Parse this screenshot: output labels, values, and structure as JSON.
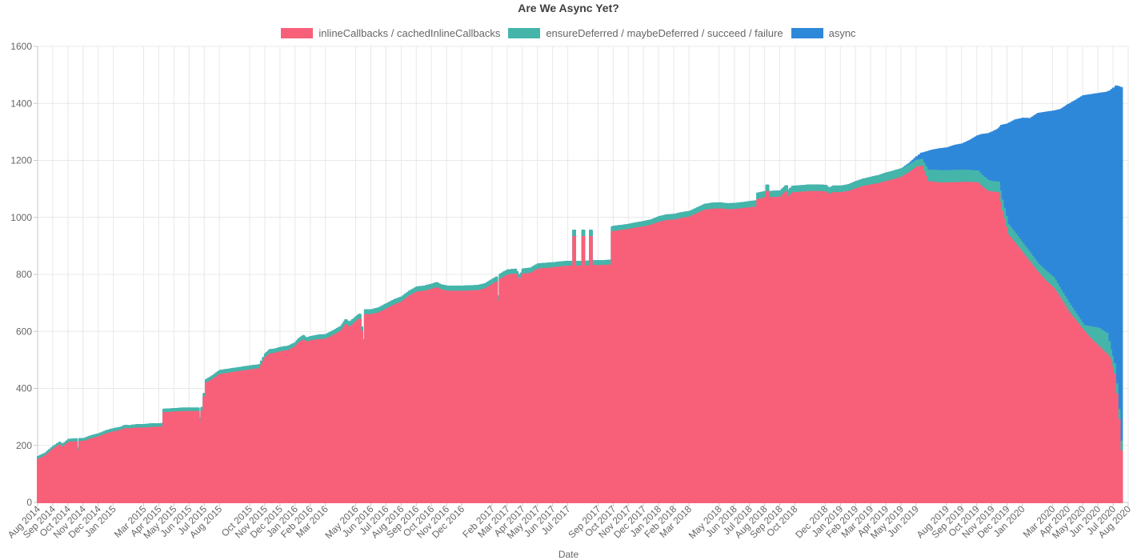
{
  "title": "Are We Async Yet?",
  "x_axis_title": "Date",
  "colors": {
    "inlineCallbacks": "#f8607a",
    "deferred": "#45b5aa",
    "async": "#2e88da",
    "grid": "#e8e8e8",
    "axis_line": "#c9c9c9",
    "tick_text": "#666666"
  },
  "legend": [
    {
      "label": "inlineCallbacks / cachedInlineCallbacks",
      "color": "#f8607a"
    },
    {
      "label": "ensureDeferred / maybeDeferred / succeed / failure",
      "color": "#45b5aa"
    },
    {
      "label": "async",
      "color": "#2e88da"
    }
  ],
  "chart_data": {
    "type": "area",
    "stacked": true,
    "title": "Are We Async Yet?",
    "xlabel": "Date",
    "ylabel": "",
    "ylim": [
      0,
      1600
    ],
    "grid": true,
    "legend_position": "top",
    "x_unit": "fractional months since Aug 2014",
    "y_ticks": [
      0,
      200,
      400,
      600,
      800,
      1000,
      1200,
      1400,
      1600
    ],
    "x_tick_labels": [
      [
        0,
        "Aug 2014"
      ],
      [
        1,
        "Sep 2014"
      ],
      [
        2,
        "Oct 2014"
      ],
      [
        3,
        "Nov 2014"
      ],
      [
        4,
        "Dec 2014"
      ],
      [
        5,
        "Jan 2015"
      ],
      [
        7,
        "Mar 2015"
      ],
      [
        8,
        "Apr 2015"
      ],
      [
        9,
        "May 2015"
      ],
      [
        10,
        "Jun 2015"
      ],
      [
        11,
        "Jul 2015"
      ],
      [
        12,
        "Aug 2015"
      ],
      [
        14,
        "Oct 2015"
      ],
      [
        15,
        "Nov 2015"
      ],
      [
        16,
        "Dec 2015"
      ],
      [
        17,
        "Jan 2016"
      ],
      [
        18,
        "Feb 2016"
      ],
      [
        19,
        "Mar 2016"
      ],
      [
        21,
        "May 2016"
      ],
      [
        22,
        "Jun 2016"
      ],
      [
        23,
        "Jul 2016"
      ],
      [
        24,
        "Aug 2016"
      ],
      [
        25,
        "Sep 2016"
      ],
      [
        26,
        "Oct 2016"
      ],
      [
        27,
        "Nov 2016"
      ],
      [
        28,
        "Dec 2016"
      ],
      [
        30,
        "Feb 2017"
      ],
      [
        31,
        "Mar 2017"
      ],
      [
        32,
        "Apr 2017"
      ],
      [
        33,
        "May 2017"
      ],
      [
        34,
        "Jun 2017"
      ],
      [
        35,
        "Jul 2017"
      ],
      [
        37,
        "Sep 2017"
      ],
      [
        38,
        "Oct 2017"
      ],
      [
        39,
        "Nov 2017"
      ],
      [
        40,
        "Dec 2017"
      ],
      [
        41,
        "Jan 2018"
      ],
      [
        42,
        "Feb 2018"
      ],
      [
        43,
        "Mar 2018"
      ],
      [
        45,
        "May 2018"
      ],
      [
        46,
        "Jun 2018"
      ],
      [
        47,
        "Jul 2018"
      ],
      [
        48,
        "Aug 2018"
      ],
      [
        49,
        "Sep 2018"
      ],
      [
        50,
        "Oct 2018"
      ],
      [
        52,
        "Dec 2018"
      ],
      [
        53,
        "Jan 2019"
      ],
      [
        54,
        "Feb 2019"
      ],
      [
        55,
        "Mar 2019"
      ],
      [
        56,
        "Apr 2019"
      ],
      [
        57,
        "May 2019"
      ],
      [
        58,
        "Jun 2019"
      ],
      [
        60,
        "Aug 2019"
      ],
      [
        61,
        "Sep 2019"
      ],
      [
        62,
        "Oct 2019"
      ],
      [
        63,
        "Nov 2019"
      ],
      [
        64,
        "Dec 2019"
      ],
      [
        65,
        "Jan 2020"
      ],
      [
        67,
        "Mar 2020"
      ],
      [
        68,
        "Apr 2020"
      ],
      [
        69,
        "May 2020"
      ],
      [
        70,
        "Jun 2020"
      ],
      [
        71,
        "Jul 2020"
      ],
      [
        72,
        "Aug 2020"
      ]
    ],
    "series": [
      {
        "name": "inlineCallbacks / cachedInlineCallbacks",
        "color": "#f8607a"
      },
      {
        "name": "ensureDeferred / maybeDeferred / succeed / failure",
        "color": "#45b5aa"
      },
      {
        "name": "async",
        "color": "#2e88da"
      }
    ],
    "points_format": "[x_month, inlineCallbacks, deferred, async]",
    "points": [
      [
        0,
        150,
        10,
        0
      ],
      [
        0.5,
        163,
        10,
        0
      ],
      [
        1,
        186,
        10,
        0
      ],
      [
        1.4,
        200,
        10,
        0
      ],
      [
        1.6,
        192,
        10,
        0
      ],
      [
        2,
        210,
        10,
        0
      ],
      [
        2.5,
        212,
        10,
        0
      ],
      [
        2.6,
        180,
        10,
        0
      ],
      [
        2.75,
        213,
        10,
        0
      ],
      [
        3,
        213,
        10,
        0
      ],
      [
        3.5,
        222,
        11,
        0
      ],
      [
        4,
        229,
        11,
        0
      ],
      [
        4.5,
        240,
        11,
        0
      ],
      [
        5,
        247,
        11,
        0
      ],
      [
        5.5,
        252,
        11,
        0
      ],
      [
        5.7,
        258,
        11,
        0
      ],
      [
        6,
        257,
        11,
        0
      ],
      [
        6.5,
        260,
        12,
        0
      ],
      [
        7,
        260,
        12,
        0
      ],
      [
        7.5,
        262,
        13,
        0
      ],
      [
        8,
        263,
        12,
        0
      ],
      [
        8.2,
        264,
        12,
        0
      ],
      [
        8.3,
        314,
        12,
        0
      ],
      [
        9,
        316,
        12,
        0
      ],
      [
        9.5,
        318,
        12,
        0
      ],
      [
        10,
        318,
        12,
        0
      ],
      [
        10.55,
        318,
        12,
        0
      ],
      [
        10.65,
        283,
        12,
        0
      ],
      [
        10.8,
        320,
        12,
        0
      ],
      [
        11.1,
        418,
        12,
        0
      ],
      [
        11.5,
        430,
        13,
        0
      ],
      [
        12,
        448,
        14,
        0
      ],
      [
        12.5,
        452,
        14,
        0
      ],
      [
        13,
        456,
        14,
        0
      ],
      [
        13.5,
        460,
        14,
        0
      ],
      [
        14,
        464,
        14,
        0
      ],
      [
        14.6,
        468,
        14,
        0
      ],
      [
        15,
        505,
        15,
        0
      ],
      [
        15.3,
        520,
        15,
        0
      ],
      [
        15.6,
        522,
        15,
        0
      ],
      [
        16,
        528,
        15,
        0
      ],
      [
        16.5,
        532,
        15,
        0
      ],
      [
        17,
        545,
        15,
        0
      ],
      [
        17.2,
        558,
        15,
        0
      ],
      [
        17.5,
        568,
        16,
        0
      ],
      [
        17.7,
        560,
        15,
        0
      ],
      [
        18,
        566,
        15,
        0
      ],
      [
        18.5,
        570,
        16,
        0
      ],
      [
        19,
        572,
        16,
        0
      ],
      [
        19.5,
        585,
        17,
        0
      ],
      [
        20,
        600,
        17,
        0
      ],
      [
        20.3,
        622,
        18,
        0
      ],
      [
        20.5,
        612,
        18,
        0
      ],
      [
        20.9,
        628,
        18,
        0
      ],
      [
        21.2,
        642,
        17,
        0
      ],
      [
        21.45,
        555,
        15,
        0
      ],
      [
        21.6,
        658,
        17,
        0
      ],
      [
        22,
        658,
        17,
        0
      ],
      [
        22.5,
        664,
        18,
        0
      ],
      [
        23,
        678,
        18,
        0
      ],
      [
        23.5,
        692,
        18,
        0
      ],
      [
        24,
        702,
        18,
        0
      ],
      [
        24.5,
        722,
        18,
        0
      ],
      [
        25,
        737,
        18,
        0
      ],
      [
        25.5,
        740,
        18,
        0
      ],
      [
        26,
        747,
        18,
        0
      ],
      [
        26.3,
        752,
        18,
        0
      ],
      [
        26.6,
        744,
        18,
        0
      ],
      [
        27,
        740,
        18,
        0
      ],
      [
        27.5,
        740,
        18,
        0
      ],
      [
        28,
        740,
        18,
        0
      ],
      [
        28.5,
        741,
        18,
        0
      ],
      [
        29,
        742,
        18,
        0
      ],
      [
        29.5,
        748,
        18,
        0
      ],
      [
        30,
        764,
        18,
        0
      ],
      [
        30.25,
        772,
        18,
        0
      ],
      [
        30.35,
        705,
        18,
        0
      ],
      [
        30.5,
        782,
        18,
        0
      ],
      [
        31,
        797,
        18,
        0
      ],
      [
        31.5,
        800,
        17,
        0
      ],
      [
        31.8,
        773,
        17,
        0
      ],
      [
        32,
        800,
        18,
        0
      ],
      [
        32.5,
        803,
        18,
        0
      ],
      [
        33,
        818,
        18,
        0
      ],
      [
        33.5,
        820,
        18,
        0
      ],
      [
        34,
        822,
        18,
        0
      ],
      [
        34.5,
        826,
        17,
        0
      ],
      [
        35,
        828,
        17,
        0
      ],
      [
        35.25,
        828,
        17,
        0
      ],
      [
        35.35,
        932,
        22,
        0
      ],
      [
        35.5,
        828,
        17,
        0
      ],
      [
        35.85,
        828,
        17,
        0
      ],
      [
        35.95,
        932,
        22,
        0
      ],
      [
        36.1,
        828,
        17,
        0
      ],
      [
        36.35,
        829,
        17,
        0
      ],
      [
        36.45,
        932,
        22,
        0
      ],
      [
        36.6,
        830,
        17,
        0
      ],
      [
        37,
        830,
        17,
        0
      ],
      [
        37.5,
        831,
        17,
        0
      ],
      [
        37.75,
        832,
        17,
        0
      ],
      [
        37.9,
        948,
        18,
        0
      ],
      [
        38,
        950,
        18,
        0
      ],
      [
        38.5,
        953,
        18,
        0
      ],
      [
        39,
        957,
        18,
        0
      ],
      [
        39.5,
        962,
        18,
        0
      ],
      [
        40,
        966,
        19,
        0
      ],
      [
        40.5,
        972,
        19,
        0
      ],
      [
        41,
        982,
        20,
        0
      ],
      [
        41.5,
        988,
        20,
        0
      ],
      [
        42,
        990,
        20,
        0
      ],
      [
        42.5,
        996,
        20,
        0
      ],
      [
        43,
        1000,
        20,
        0
      ],
      [
        43.5,
        1012,
        20,
        0
      ],
      [
        44,
        1024,
        21,
        0
      ],
      [
        44.5,
        1028,
        21,
        0
      ],
      [
        45,
        1029,
        21,
        0
      ],
      [
        45.5,
        1026,
        21,
        0
      ],
      [
        46,
        1027,
        21,
        0
      ],
      [
        46.5,
        1030,
        21,
        0
      ],
      [
        47,
        1033,
        22,
        0
      ],
      [
        47.35,
        1035,
        22,
        0
      ],
      [
        47.5,
        1062,
        22,
        0
      ],
      [
        48,
        1068,
        22,
        0
      ],
      [
        48.1,
        1090,
        22,
        0
      ],
      [
        48.25,
        1068,
        22,
        0
      ],
      [
        49,
        1070,
        22,
        0
      ],
      [
        49.35,
        1088,
        22,
        0
      ],
      [
        49.5,
        1072,
        22,
        0
      ],
      [
        49.8,
        1085,
        23,
        0
      ],
      [
        50,
        1086,
        23,
        0
      ],
      [
        50.5,
        1088,
        23,
        0
      ],
      [
        51,
        1090,
        23,
        0
      ],
      [
        51.5,
        1090,
        23,
        0
      ],
      [
        52,
        1088,
        23,
        0
      ],
      [
        52.2,
        1078,
        23,
        0
      ],
      [
        52.5,
        1086,
        23,
        0
      ],
      [
        53,
        1086,
        23,
        0
      ],
      [
        53.5,
        1090,
        24,
        0
      ],
      [
        54,
        1100,
        25,
        0
      ],
      [
        54.5,
        1108,
        26,
        0
      ],
      [
        55,
        1113,
        27,
        0
      ],
      [
        55.5,
        1118,
        28,
        0
      ],
      [
        56,
        1125,
        30,
        0
      ],
      [
        56.5,
        1132,
        30,
        0
      ],
      [
        57,
        1140,
        30,
        0
      ],
      [
        57.5,
        1155,
        28,
        5
      ],
      [
        58,
        1175,
        25,
        12
      ],
      [
        58.3,
        1178,
        24,
        22
      ],
      [
        58.7,
        1125,
        40,
        65
      ],
      [
        59,
        1123,
        42,
        70
      ],
      [
        59.5,
        1120,
        43,
        77
      ],
      [
        60,
        1120,
        43,
        80
      ],
      [
        60.5,
        1121,
        43,
        88
      ],
      [
        61,
        1122,
        43,
        92
      ],
      [
        61.5,
        1122,
        42,
        105
      ],
      [
        62,
        1120,
        42,
        123
      ],
      [
        62.3,
        1105,
        40,
        145
      ],
      [
        62.7,
        1090,
        38,
        165
      ],
      [
        63,
        1088,
        37,
        174
      ],
      [
        63.4,
        1085,
        38,
        187
      ],
      [
        63.6,
        1020,
        40,
        262
      ],
      [
        64,
        938,
        37,
        352
      ],
      [
        64.5,
        905,
        36,
        400
      ],
      [
        65,
        870,
        35,
        442
      ],
      [
        65.5,
        838,
        33,
        475
      ],
      [
        66,
        805,
        30,
        529
      ],
      [
        66.5,
        775,
        35,
        558
      ],
      [
        67,
        750,
        38,
        584
      ],
      [
        67.5,
        710,
        33,
        635
      ],
      [
        68,
        668,
        32,
        695
      ],
      [
        68.5,
        635,
        25,
        750
      ],
      [
        69,
        600,
        20,
        806
      ],
      [
        69.5,
        570,
        45,
        815
      ],
      [
        70,
        545,
        65,
        824
      ],
      [
        70.5,
        520,
        73,
        845
      ],
      [
        70.8,
        497,
        37,
        910
      ],
      [
        71.0,
        450,
        36,
        967
      ],
      [
        71.15,
        380,
        35,
        1045
      ],
      [
        71.3,
        290,
        35,
        1133
      ],
      [
        71.45,
        180,
        34,
        1241
      ],
      [
        71.6,
        80,
        32,
        1337
      ]
    ]
  }
}
